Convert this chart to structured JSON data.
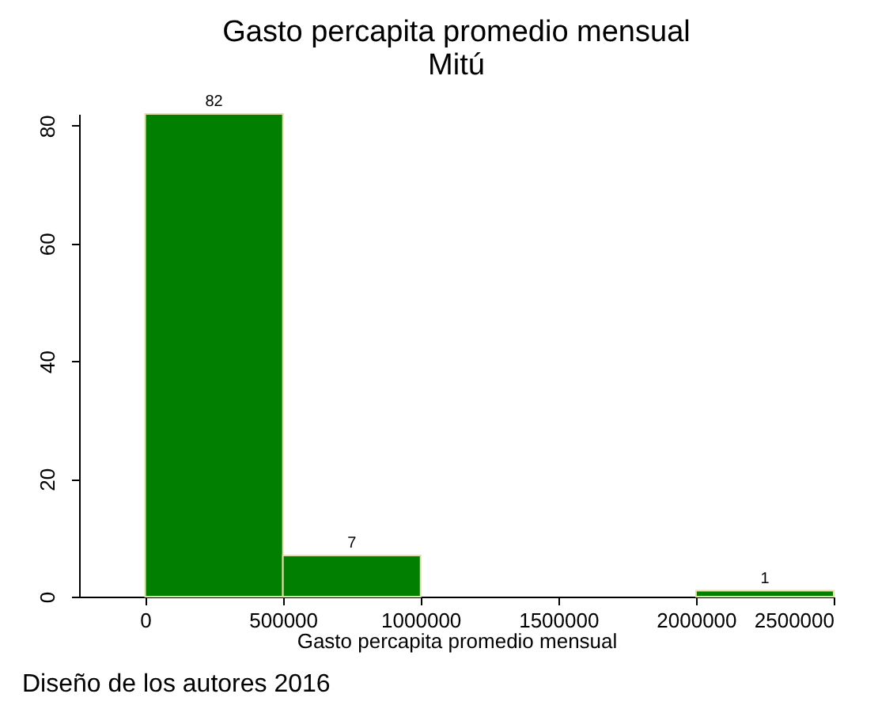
{
  "chart_data": {
    "type": "histogram",
    "title": "Gasto percapita promedio mensual",
    "subtitle": "Mitú",
    "xlabel": "Gasto percapita promedio mensual",
    "bins": [
      0,
      500000,
      1000000,
      1500000,
      2000000,
      2500000
    ],
    "values": [
      82,
      7,
      0,
      0,
      1
    ],
    "value_labels": [
      "82",
      "7",
      null,
      null,
      "1"
    ],
    "color": "#007f00",
    "xlim": [
      -240000,
      2500000
    ],
    "xticks": [
      0,
      500000,
      1000000,
      1500000,
      2000000,
      2500000
    ],
    "ylim": [
      0,
      82
    ],
    "yticks": [
      0,
      20,
      40,
      60,
      80
    ],
    "grid": false,
    "annotations": [
      "Diseño de los autores 2016"
    ]
  }
}
